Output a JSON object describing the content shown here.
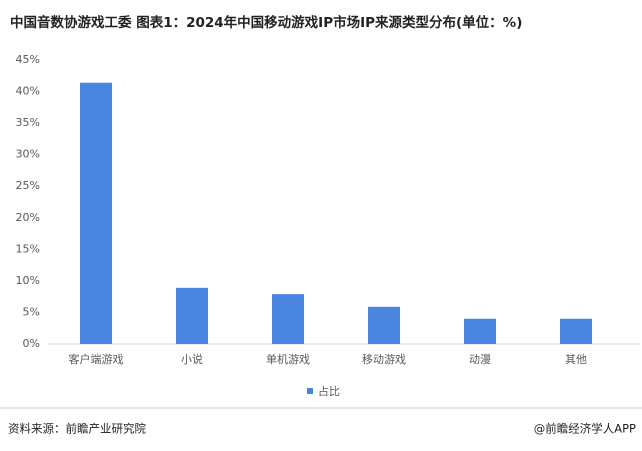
{
  "chart_data": {
    "type": "bar",
    "title": "中国音数协游戏工委 图表1：2024年中国移动游戏IP市场IP来源类型分布(单位：%)",
    "categories": [
      "客户端游戏",
      "小说",
      "单机游戏",
      "移动游戏",
      "动漫",
      "其他"
    ],
    "series": [
      {
        "name": "占比",
        "color": "#4a86e0",
        "values": [
          41.4,
          8.9,
          7.9,
          5.9,
          4.0,
          4.0
        ]
      }
    ],
    "ylim": [
      0,
      45
    ],
    "yticks": [
      {
        "value": 0,
        "label": "0%"
      },
      {
        "value": 5,
        "label": "5%"
      },
      {
        "value": 10,
        "label": "10%"
      },
      {
        "value": 15,
        "label": "15%"
      },
      {
        "value": 20,
        "label": "20%"
      },
      {
        "value": 25,
        "label": "25%"
      },
      {
        "value": 30,
        "label": "30%"
      },
      {
        "value": 35,
        "label": "35%"
      },
      {
        "value": 40,
        "label": "40%"
      },
      {
        "value": 45,
        "label": "45%"
      }
    ],
    "grid": false,
    "source": "资料来源：前瞻产业研究院",
    "credit": "@前瞻经济学人APP"
  }
}
